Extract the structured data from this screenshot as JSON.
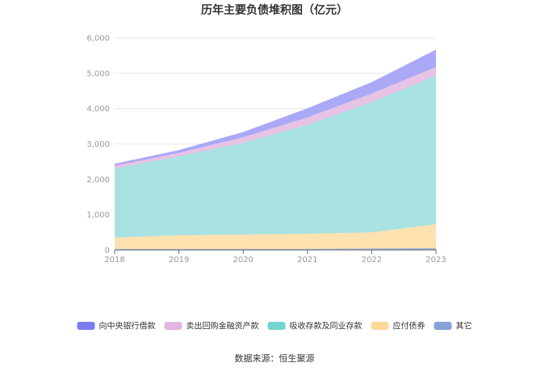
{
  "chart_data": {
    "type": "area",
    "stacked": true,
    "title": "历年主要负债堆积图（亿元）",
    "categories": [
      "2018",
      "2019",
      "2020",
      "2021",
      "2022",
      "2023"
    ],
    "y_ticks": [
      "0",
      "1,000",
      "2,000",
      "3,000",
      "4,000",
      "5,000",
      "6,000"
    ],
    "ylim": [
      0,
      6000
    ],
    "grid": true,
    "legend_position": "bottom",
    "series": [
      {
        "name": "其它",
        "color": "#90a9d8",
        "values": [
          30,
          30,
          30,
          30,
          40,
          50
        ]
      },
      {
        "name": "应付债券",
        "color": "#ffe2b0",
        "values": [
          320,
          390,
          410,
          430,
          460,
          680
        ]
      },
      {
        "name": "吸收存款及同业存款",
        "color": "#a8e2e2",
        "values": [
          1950,
          2230,
          2590,
          3080,
          3680,
          4200
        ]
      },
      {
        "name": "卖出回购金融资产款",
        "color": "#e7c3e5",
        "values": [
          80,
          100,
          160,
          210,
          250,
          250
        ]
      },
      {
        "name": "向中央银行借款",
        "color": "#a9a9f7",
        "values": [
          40,
          60,
          130,
          240,
          300,
          470
        ]
      }
    ],
    "legend_order": [
      "向中央银行借款",
      "卖出回购金融资产款",
      "吸收存款及同业存款",
      "应付债券",
      "其它"
    ],
    "legend_colors": [
      "#7b7bf0",
      "#e2b6e0",
      "#76d3d3",
      "#ffd89a",
      "#86a3d6"
    ]
  },
  "source": "数据来源：恒生聚源"
}
